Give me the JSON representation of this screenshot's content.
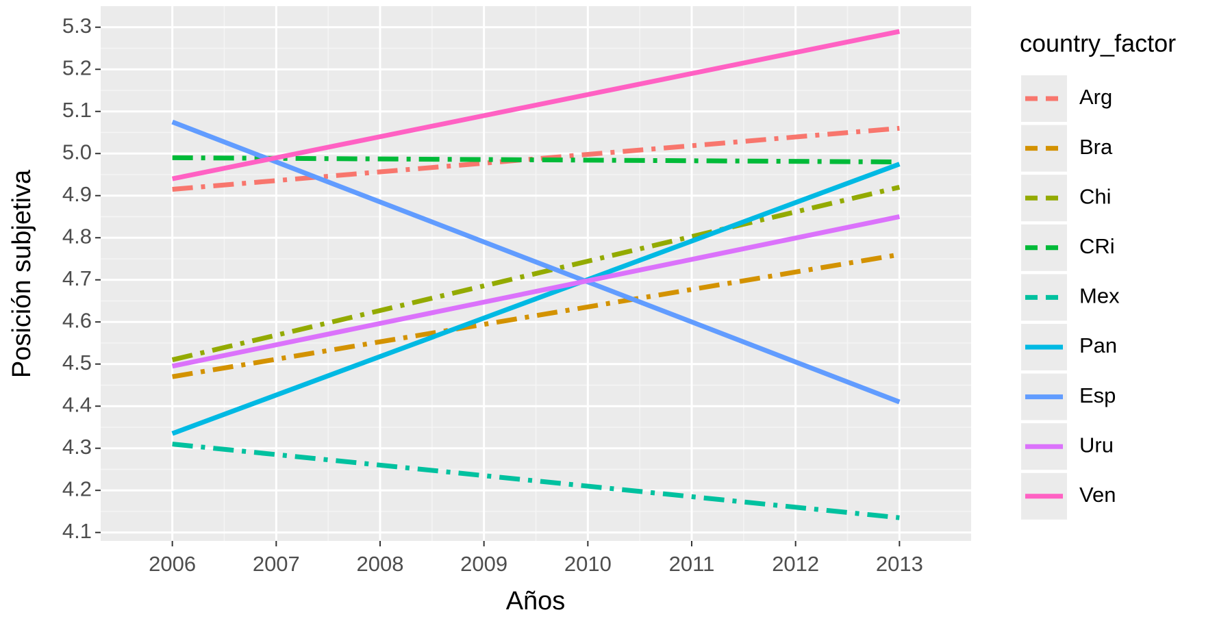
{
  "chart_data": {
    "type": "line",
    "x_label": "Años",
    "y_label": "Posición subjetiva",
    "legend_title": "country_factor",
    "x": [
      2006,
      2013
    ],
    "xlim": [
      2005.31,
      2013.69
    ],
    "xticks": [
      2006,
      2007,
      2008,
      2009,
      2010,
      2011,
      2012,
      2013
    ],
    "ylim": [
      4.08,
      5.35
    ],
    "yticks": [
      4.1,
      4.2,
      4.3,
      4.4,
      4.5,
      4.6,
      4.7,
      4.8,
      4.9,
      {
        "value": 5,
        "label": "5.0"
      },
      5.1,
      5.2,
      5.3
    ],
    "grid": true,
    "legend": "right",
    "series": [
      {
        "name": "Arg",
        "color": "#F8766D",
        "dash": "dotdash",
        "values": [
          4.915,
          5.06
        ]
      },
      {
        "name": "Bra",
        "color": "#D39200",
        "dash": "dotdash",
        "values": [
          4.47,
          4.76
        ]
      },
      {
        "name": "Chi",
        "color": "#93AA00",
        "dash": "dotdash",
        "values": [
          4.51,
          4.92
        ]
      },
      {
        "name": "CRi",
        "color": "#00BA38",
        "dash": "dotdash",
        "values": [
          4.99,
          4.98
        ]
      },
      {
        "name": "Mex",
        "color": "#00C19F",
        "dash": "dotdash",
        "values": [
          4.31,
          4.135
        ]
      },
      {
        "name": "Pan",
        "color": "#00B9E3",
        "dash": "solid",
        "values": [
          4.335,
          4.975
        ]
      },
      {
        "name": "Esp",
        "color": "#619CFF",
        "dash": "solid",
        "values": [
          5.075,
          4.41
        ]
      },
      {
        "name": "Uru",
        "color": "#DB72FB",
        "dash": "solid",
        "values": [
          4.495,
          4.85
        ]
      },
      {
        "name": "Ven",
        "color": "#FF61C3",
        "dash": "solid",
        "values": [
          4.94,
          5.29
        ]
      }
    ]
  }
}
